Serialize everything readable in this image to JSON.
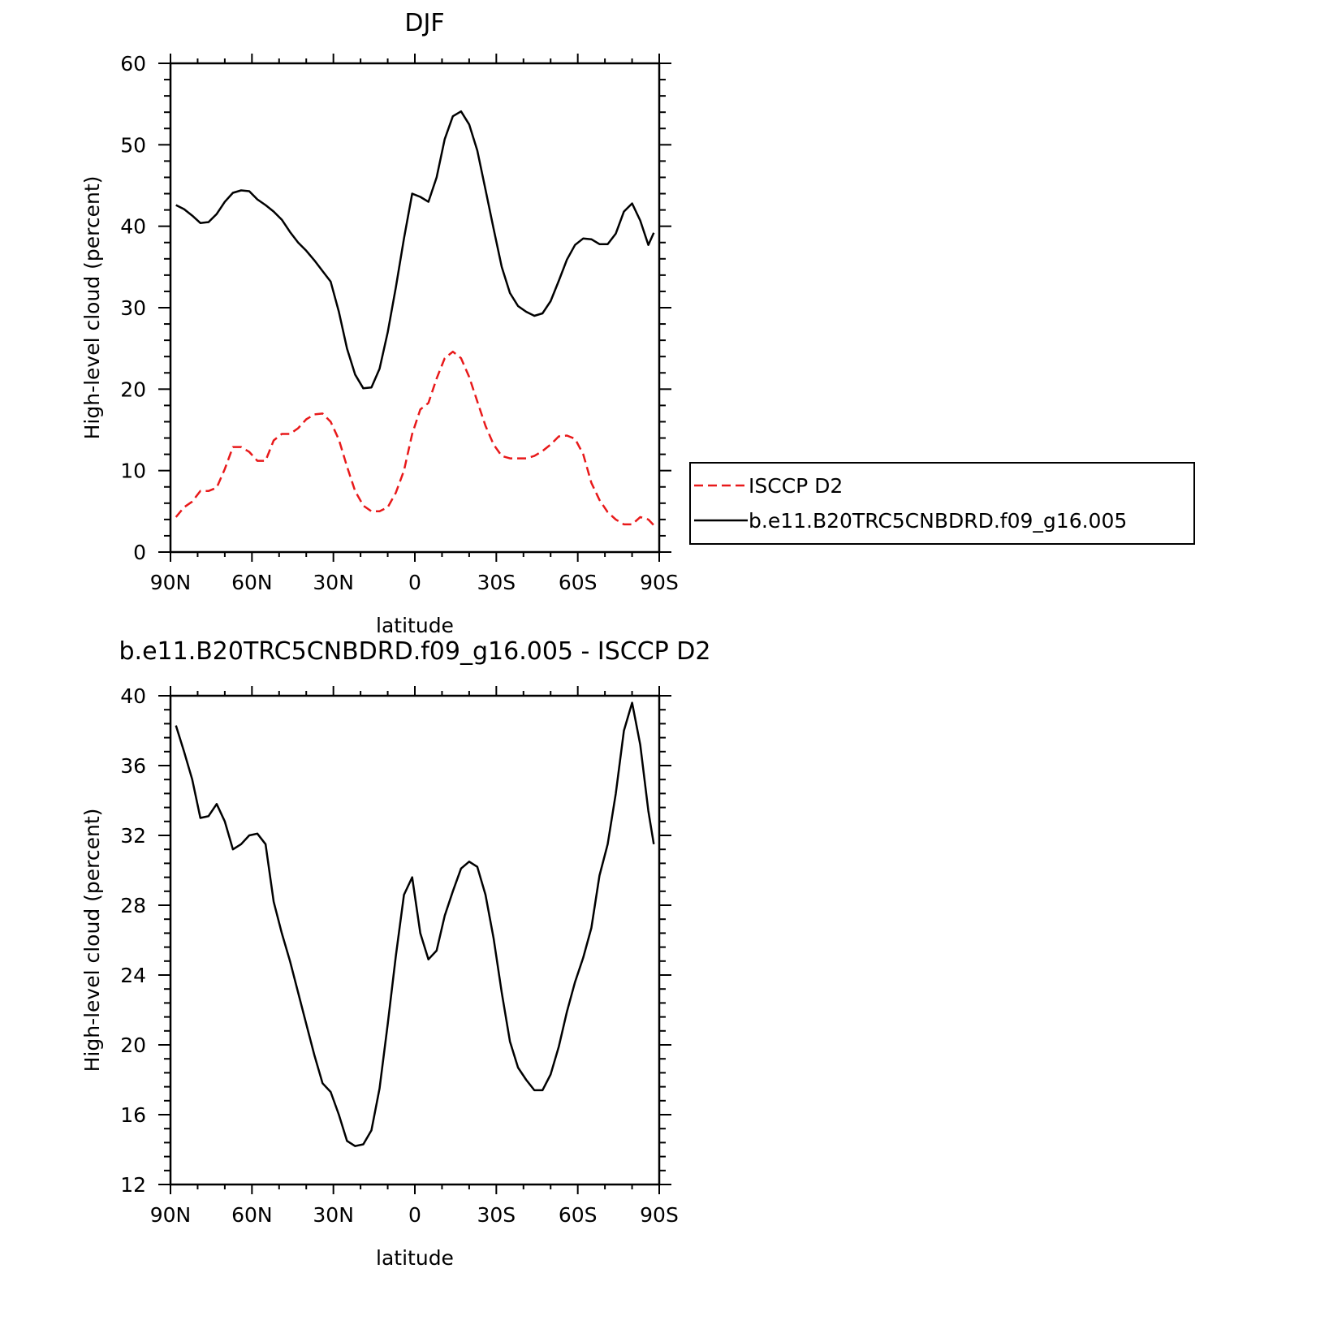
{
  "chart_data": [
    {
      "type": "line",
      "title": "DJF",
      "xlabel": "latitude",
      "ylabel": "High-level cloud (percent)",
      "xlim": [
        90,
        -90
      ],
      "ylim": [
        0,
        60
      ],
      "x_ticks": [
        90,
        60,
        30,
        0,
        -30,
        -60,
        -90
      ],
      "x_tick_labels": [
        "90N",
        "60N",
        "30N",
        "0",
        "30S",
        "60S",
        "90S"
      ],
      "y_ticks": [
        0,
        10,
        20,
        30,
        40,
        50,
        60
      ],
      "y_tick_labels": [
        "0",
        "10",
        "20",
        "30",
        "40",
        "50",
        "60"
      ],
      "grid": false,
      "legend_position": "right",
      "series": [
        {
          "name": "ISCCP D2",
          "color": "#e8191a",
          "dash": "dashed",
          "x": [
            88,
            85,
            82,
            79,
            76,
            73,
            70,
            67,
            64,
            61,
            58,
            55,
            52,
            49,
            46,
            43,
            40,
            37,
            34,
            31,
            28,
            25,
            22,
            19,
            16,
            13,
            10,
            7,
            4,
            1,
            -2,
            -5,
            -8,
            -11,
            -14,
            -17,
            -20,
            -23,
            -26,
            -29,
            -32,
            -35,
            -38,
            -41,
            -44,
            -47,
            -50,
            -53,
            -56,
            -59,
            -62,
            -65,
            -68,
            -71,
            -74,
            -77,
            -80,
            -83,
            -86,
            -88
          ],
          "y": [
            4.3,
            5.5,
            6.2,
            7.5,
            7.5,
            7.9,
            10.2,
            12.9,
            12.9,
            12.3,
            11.2,
            11.2,
            13.7,
            14.5,
            14.5,
            15.2,
            16.3,
            16.9,
            17.0,
            16.0,
            13.8,
            10.5,
            7.5,
            5.7,
            5.0,
            5.0,
            5.5,
            7.3,
            10.0,
            14.5,
            17.5,
            18.3,
            21.3,
            23.8,
            24.6,
            23.8,
            21.5,
            18.5,
            15.5,
            13.2,
            11.8,
            11.5,
            11.5,
            11.5,
            11.8,
            12.4,
            13.2,
            14.2,
            14.3,
            13.9,
            12.0,
            8.5,
            6.4,
            4.9,
            4.0,
            3.4,
            3.4,
            4.3,
            4.0,
            3.3
          ]
        },
        {
          "name": "b.e11.B20TRC5CNBDRD.f09_g16.005",
          "color": "#000000",
          "dash": "solid",
          "x": [
            88,
            85,
            82,
            79,
            76,
            73,
            70,
            67,
            64,
            61,
            58,
            55,
            52,
            49,
            46,
            43,
            40,
            37,
            34,
            31,
            28,
            25,
            22,
            19,
            16,
            13,
            10,
            7,
            4,
            1,
            -2,
            -5,
            -8,
            -11,
            -14,
            -17,
            -20,
            -23,
            -26,
            -29,
            -32,
            -35,
            -38,
            -41,
            -44,
            -47,
            -50,
            -53,
            -56,
            -59,
            -62,
            -65,
            -68,
            -71,
            -74,
            -77,
            -80,
            -83,
            -86,
            -88
          ],
          "y": [
            42.6,
            42.1,
            41.3,
            40.4,
            40.5,
            41.5,
            43.0,
            44.1,
            44.4,
            44.3,
            43.3,
            42.6,
            41.8,
            40.8,
            39.3,
            38.0,
            37.0,
            35.8,
            34.5,
            33.2,
            29.5,
            25.0,
            21.8,
            20.1,
            20.2,
            22.5,
            27.0,
            32.5,
            38.5,
            44.0,
            43.6,
            43.0,
            46.0,
            50.7,
            53.5,
            54.1,
            52.5,
            49.3,
            44.5,
            39.7,
            35.0,
            31.8,
            30.2,
            29.5,
            29.0,
            29.3,
            30.8,
            33.3,
            35.9,
            37.7,
            38.5,
            38.4,
            37.8,
            37.8,
            39.1,
            41.8,
            42.8,
            40.7,
            37.7,
            39.2
          ]
        }
      ]
    },
    {
      "type": "line",
      "title": "b.e11.B20TRC5CNBDRD.f09_g16.005 - ISCCP D2",
      "xlabel": "latitude",
      "ylabel": "High-level cloud (percent)",
      "xlim": [
        90,
        -90
      ],
      "ylim": [
        12,
        40
      ],
      "x_ticks": [
        90,
        60,
        30,
        0,
        -30,
        -60,
        -90
      ],
      "x_tick_labels": [
        "90N",
        "60N",
        "30N",
        "0",
        "30S",
        "60S",
        "90S"
      ],
      "y_ticks": [
        12,
        16,
        20,
        24,
        28,
        32,
        36,
        40
      ],
      "y_tick_labels": [
        "12",
        "16",
        "20",
        "24",
        "28",
        "32",
        "36",
        "40"
      ],
      "grid": false,
      "series": [
        {
          "color": "#000000",
          "dash": "solid",
          "x": [
            88,
            85,
            82,
            79,
            76,
            73,
            70,
            67,
            64,
            61,
            58,
            55,
            52,
            49,
            46,
            43,
            40,
            37,
            34,
            31,
            28,
            25,
            22,
            19,
            16,
            13,
            10,
            7,
            4,
            1,
            -2,
            -5,
            -8,
            -11,
            -14,
            -17,
            -20,
            -23,
            -26,
            -29,
            -32,
            -35,
            -38,
            -41,
            -44,
            -47,
            -50,
            -53,
            -56,
            -59,
            -62,
            -65,
            -68,
            -71,
            -74,
            -77,
            -80,
            -83,
            -86,
            -88
          ],
          "y": [
            38.3,
            36.8,
            35.2,
            33.0,
            33.1,
            33.8,
            32.8,
            31.2,
            31.5,
            32.0,
            32.1,
            31.5,
            28.2,
            26.4,
            24.8,
            23.0,
            21.2,
            19.4,
            17.8,
            17.3,
            16.0,
            14.5,
            14.2,
            14.3,
            15.1,
            17.5,
            21.2,
            25.1,
            28.6,
            29.6,
            26.4,
            24.9,
            25.4,
            27.4,
            28.8,
            30.1,
            30.5,
            30.2,
            28.6,
            26.1,
            23.0,
            20.2,
            18.7,
            18.0,
            17.4,
            17.4,
            18.3,
            19.9,
            21.9,
            23.6,
            25.0,
            26.7,
            29.7,
            31.5,
            34.4,
            38.0,
            39.6,
            37.2,
            33.4,
            31.5
          ]
        }
      ]
    }
  ]
}
